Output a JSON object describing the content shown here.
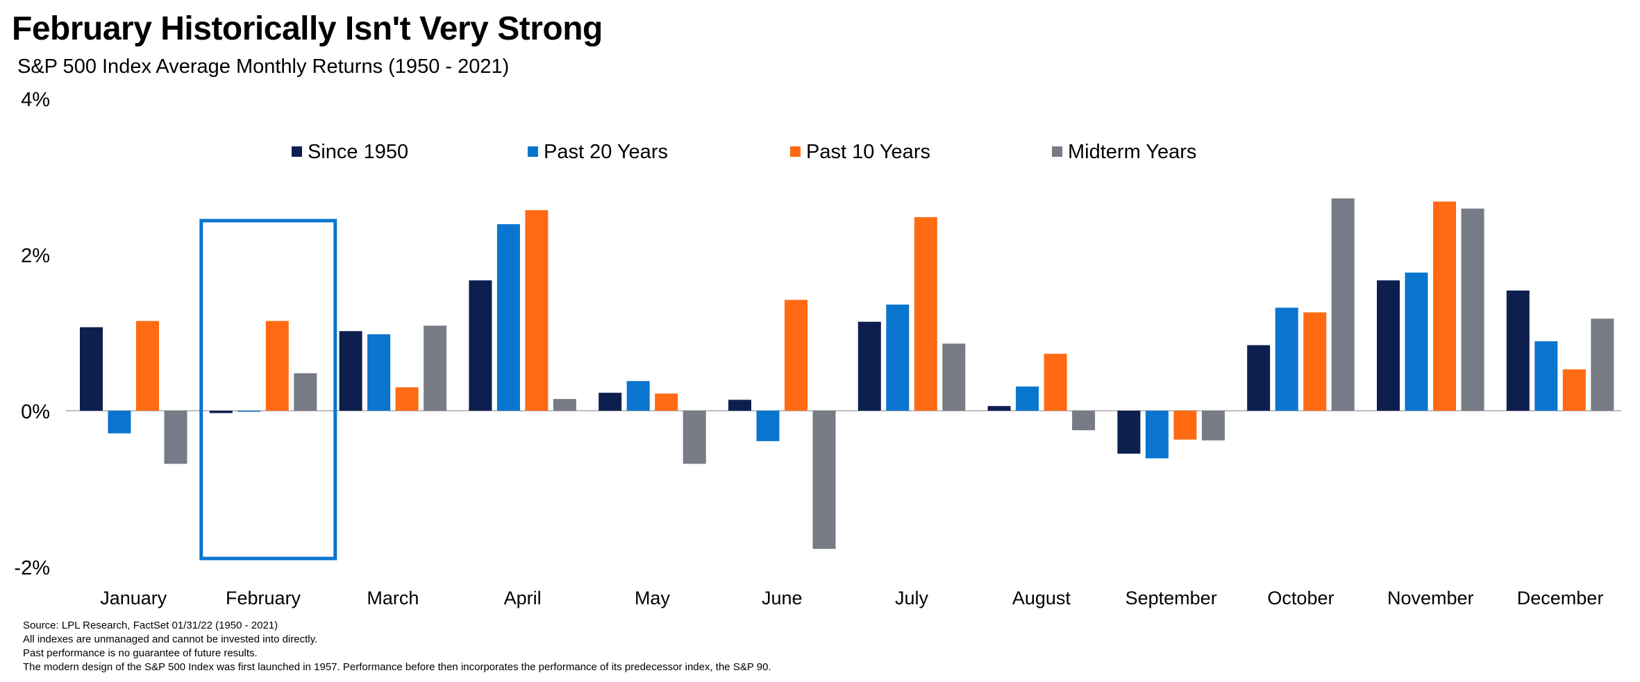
{
  "title": "February Historically Isn't Very Strong",
  "subtitle": "S&P 500 Index Average Monthly Returns (1950 - 2021)",
  "colors": {
    "since_1950": "#0d1f4f",
    "past_20": "#0a75cf",
    "past_10": "#ff6a13",
    "midterm": "#767b85",
    "highlight_box": "#0a75cf",
    "axis_line": "#bfbfbf"
  },
  "chart_data": {
    "type": "bar",
    "categories": [
      "January",
      "February",
      "March",
      "April",
      "May",
      "June",
      "July",
      "August",
      "September",
      "October",
      "November",
      "December"
    ],
    "series": [
      {
        "name": "Since 1950",
        "color_key": "since_1950",
        "values": [
          1.07,
          -0.03,
          1.02,
          1.67,
          0.23,
          0.14,
          1.14,
          0.06,
          -0.55,
          0.84,
          1.67,
          1.54
        ]
      },
      {
        "name": "Past 20 Years",
        "color_key": "past_20",
        "values": [
          -0.29,
          -0.01,
          0.98,
          2.39,
          0.38,
          -0.39,
          1.36,
          0.31,
          -0.61,
          1.32,
          1.77,
          0.89
        ]
      },
      {
        "name": "Past 10 Years",
        "color_key": "past_10",
        "values": [
          1.15,
          1.15,
          0.3,
          2.57,
          0.22,
          1.42,
          2.48,
          0.73,
          -0.37,
          1.26,
          2.68,
          0.53
        ]
      },
      {
        "name": "Midterm Years",
        "color_key": "midterm",
        "values": [
          -0.68,
          0.48,
          1.09,
          0.15,
          -0.68,
          -1.77,
          0.86,
          -0.25,
          -0.38,
          2.72,
          2.59,
          1.18
        ]
      }
    ],
    "yticks": [
      "4%",
      "2%",
      "0%",
      "-2%"
    ],
    "ytick_values": [
      4,
      2,
      0,
      -2
    ],
    "ylim": [
      -2,
      4
    ],
    "xlabel": "",
    "ylabel": "",
    "grid": false,
    "legend_position": "top-center",
    "highlighted_category": "February"
  },
  "footnotes": [
    "Source: LPL Research, FactSet 01/31/22  (1950 - 2021)",
    "All indexes are unmanaged and cannot be invested into directly.",
    "Past performance is no guarantee of future results.",
    "The modern design of the S&P 500 Index was first launched in 1957. Performance before then incorporates the performance of its  predecessor index, the S&P 90."
  ]
}
